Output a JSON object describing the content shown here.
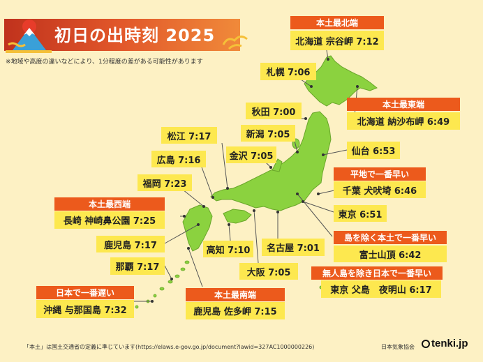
{
  "title": "初日の出時刻 2025",
  "note": "※地域や高度の違いなどにより、1分程度の差がある可能性があります",
  "footer": "「本土」は国土交通省の定義に準じています(https://elaws.e-gov.go.jp/document?lawid=327AC1000000226)",
  "credit": "日本気象協会",
  "brand": "tenki.jp",
  "colors": {
    "background": "#fdf1c4",
    "land": "#8bd23f",
    "label": "#fde84f",
    "header": "#ec5a1c",
    "banner": "#d1411f"
  },
  "special": {
    "north": {
      "header": "本土最北端",
      "text": "北海道 宗谷岬 7:12"
    },
    "east": {
      "header": "本土最東端",
      "text": "北海道 納沙布岬 6:49"
    },
    "flat": {
      "header": "平地で一番早い",
      "text": "千葉 犬吠埼 6:46"
    },
    "fuji": {
      "header": "島を除く本土で一番早い",
      "text": "富士山頂 6:42"
    },
    "island": {
      "header": "無人島を除き日本で一番早い",
      "text": "東京 父島　夜明山 6:17"
    },
    "south": {
      "header": "本土最南端",
      "text": "鹿児島 佐多岬 7:15"
    },
    "west": {
      "header": "本土最西端",
      "text": "長崎 神崎鼻公園 7:25"
    },
    "latest": {
      "header": "日本で一番遅い",
      "text": "沖縄 与那国島 7:32"
    }
  },
  "cities": {
    "sapporo": "札幌 7:06",
    "akita": "秋田 7:00",
    "niigata": "新潟 7:05",
    "sendai": "仙台 6:53",
    "kanazawa": "金沢 7:05",
    "matsue": "松江 7:17",
    "hiroshima": "広島 7:16",
    "fukuoka": "福岡 7:23",
    "tokyo": "東京 6:51",
    "nagoya": "名古屋 7:01",
    "kochi": "高知 7:10",
    "osaka": "大阪 7:05",
    "kagoshima": "鹿児島 7:17",
    "naha": "那覇 7:17"
  }
}
